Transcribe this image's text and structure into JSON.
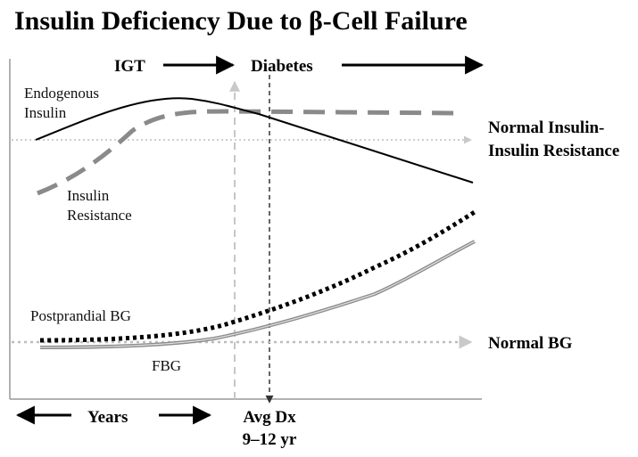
{
  "title": "Insulin Deficiency Due to β-Cell Failure",
  "phases": {
    "igt": "IGT",
    "diabetes": "Diabetes"
  },
  "labels": {
    "endogenous_line1": "Endogenous",
    "endogenous_line2": "Insulin",
    "resistance_line1": "Insulin",
    "resistance_line2": "Resistance",
    "normal_insulin_line1": "Normal Insulin-",
    "normal_insulin_line2": "Insulin Resistance",
    "postprandial": "Postprandial BG",
    "fbg": "FBG",
    "normal_bg": "Normal BG",
    "years": "Years",
    "avg_dx_line1": "Avg Dx",
    "avg_dx_line2": "9–12 yr"
  },
  "colors": {
    "black": "#000000",
    "dashed_gray": "#8a8a8a",
    "dotted_ref": "#bdbdbd",
    "fbg_line": "#8c8c8c",
    "axis": "#999999"
  }
}
